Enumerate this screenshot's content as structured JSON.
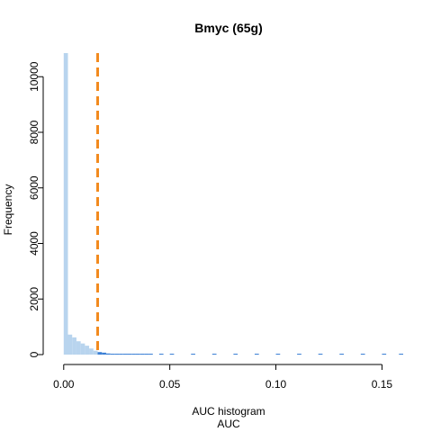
{
  "chart_data": {
    "type": "bar",
    "title": "Bmyc (65g)",
    "xlabel_line1": "AUC histogram",
    "xlabel_line2": "AUC",
    "ylabel": "Frequency",
    "xlim": [
      -0.005,
      0.16
    ],
    "ylim": [
      0,
      10850
    ],
    "x_ticks": [
      0.0,
      0.05,
      0.1,
      0.15
    ],
    "x_tick_labels": [
      "0.00",
      "0.05",
      "0.10",
      "0.15"
    ],
    "y_ticks": [
      0,
      2000,
      4000,
      6000,
      8000,
      10000
    ],
    "y_tick_labels": [
      "0",
      "2000",
      "4000",
      "6000",
      "8000",
      "10000"
    ],
    "bin_width": 0.002,
    "bins": [
      {
        "x0": 0.0,
        "count": 10850
      },
      {
        "x0": 0.002,
        "count": 720
      },
      {
        "x0": 0.004,
        "count": 620
      },
      {
        "x0": 0.006,
        "count": 480
      },
      {
        "x0": 0.008,
        "count": 400
      },
      {
        "x0": 0.01,
        "count": 320
      },
      {
        "x0": 0.012,
        "count": 220
      },
      {
        "x0": 0.014,
        "count": 140
      },
      {
        "x0": 0.016,
        "count": 90
      },
      {
        "x0": 0.018,
        "count": 70
      },
      {
        "x0": 0.02,
        "count": 40
      },
      {
        "x0": 0.022,
        "count": 30
      },
      {
        "x0": 0.024,
        "count": 22
      },
      {
        "x0": 0.026,
        "count": 18
      },
      {
        "x0": 0.028,
        "count": 15
      },
      {
        "x0": 0.03,
        "count": 12
      },
      {
        "x0": 0.032,
        "count": 10
      },
      {
        "x0": 0.034,
        "count": 9
      },
      {
        "x0": 0.036,
        "count": 8
      },
      {
        "x0": 0.038,
        "count": 7
      },
      {
        "x0": 0.04,
        "count": 6
      },
      {
        "x0": 0.045,
        "count": 5
      },
      {
        "x0": 0.05,
        "count": 5
      },
      {
        "x0": 0.06,
        "count": 4
      },
      {
        "x0": 0.07,
        "count": 4
      },
      {
        "x0": 0.08,
        "count": 3
      },
      {
        "x0": 0.09,
        "count": 3
      },
      {
        "x0": 0.1,
        "count": 3
      },
      {
        "x0": 0.11,
        "count": 2
      },
      {
        "x0": 0.12,
        "count": 2
      },
      {
        "x0": 0.13,
        "count": 2
      },
      {
        "x0": 0.14,
        "count": 2
      },
      {
        "x0": 0.15,
        "count": 2
      },
      {
        "x0": 0.158,
        "count": 2
      }
    ],
    "threshold": 0.016,
    "colors": {
      "bar_below_threshold": "#b8d4ee",
      "bar_above_threshold": "#3a7fd5",
      "threshold_line": "#f28a1e"
    }
  }
}
